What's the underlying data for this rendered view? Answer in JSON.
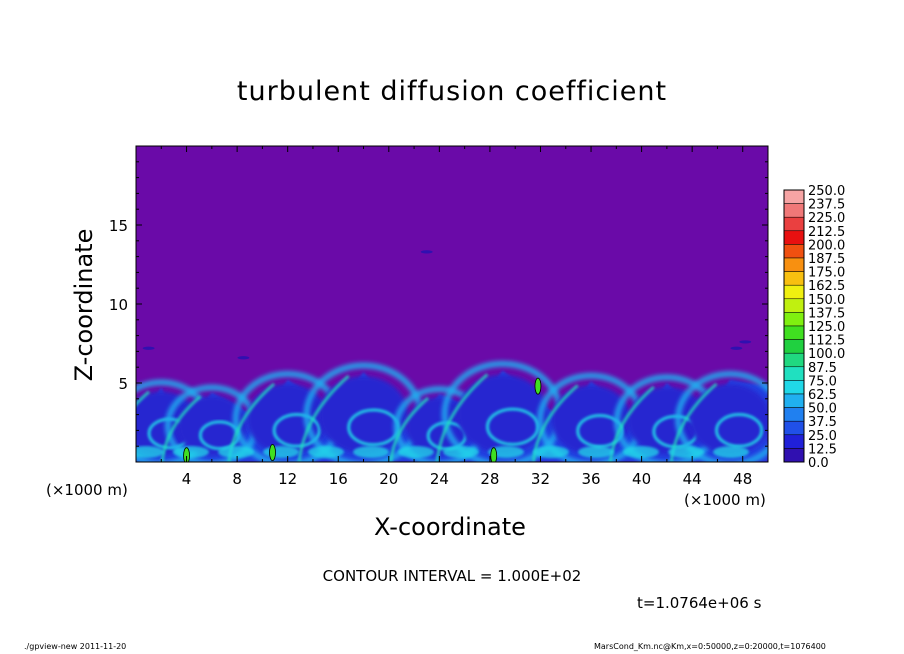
{
  "chart_data": {
    "type": "heatmap",
    "title": "turbulent diffusion coefficient",
    "xlabel": "X-coordinate",
    "ylabel": "Z-coordinate",
    "x_unit": "(×1000 m)",
    "xlim": [
      0,
      50
    ],
    "ylim": [
      0,
      20
    ],
    "x_ticks": [
      4,
      8,
      12,
      16,
      20,
      24,
      28,
      32,
      36,
      40,
      44,
      48
    ],
    "y_ticks": [
      5,
      10,
      15
    ],
    "colorbar": {
      "levels": [
        "250.0",
        "237.5",
        "225.0",
        "212.5",
        "200.0",
        "187.5",
        "175.0",
        "162.5",
        "150.0",
        "137.5",
        "125.0",
        "112.5",
        "100.0",
        "87.5",
        "75.0",
        "62.5",
        "50.0",
        "37.5",
        "25.0",
        "12.5",
        "0.0"
      ],
      "colors": [
        "#f6a4a4",
        "#f07878",
        "#ea4040",
        "#e81010",
        "#f05010",
        "#f89010",
        "#f8c010",
        "#f0f010",
        "#c0f010",
        "#80f010",
        "#40e020",
        "#20d040",
        "#20d880",
        "#20e0c0",
        "#20d8e8",
        "#20b0f0",
        "#2080f0",
        "#2050e8",
        "#2020d8",
        "#3010b0",
        "#6a0aa8"
      ]
    },
    "field_pattern": {
      "background_value": "0.0",
      "turbulent_layer_top_km": 5,
      "eddy_centers_x": [
        2,
        6,
        12,
        18,
        24,
        29,
        36,
        42,
        47
      ],
      "eddy_tops_km": [
        4.7,
        4.4,
        5.2,
        5.7,
        4.3,
        5.8,
        5.1,
        5.0,
        5.2
      ]
    }
  },
  "contour_interval": "CONTOUR INTERVAL = 1.000E+02",
  "time_label": "t=1.0764e+06 s",
  "footer": {
    "left": "./gpview-new  2011-11-20",
    "right": "MarsCond_Km.nc@Km,x=0:50000,z=0:20000,t=1076400"
  }
}
